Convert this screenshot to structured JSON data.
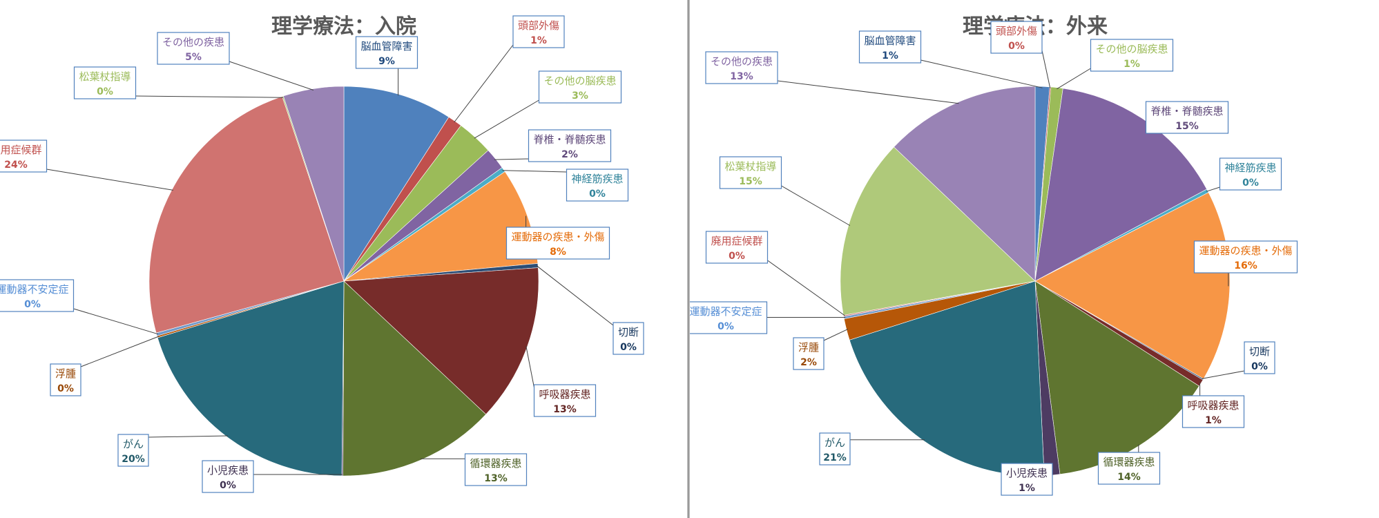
{
  "chart_data": [
    {
      "type": "pie",
      "title": "理学療法：入院",
      "slices": [
        {
          "label": "脳血管障害",
          "value": 9,
          "pct_text": "9%",
          "color": "#4f81bd",
          "text_color": "#1f497d"
        },
        {
          "label": "頭部外傷",
          "value": 1.2,
          "pct_text": "1%",
          "color": "#c0504d",
          "text_color": "#c0504d"
        },
        {
          "label": "その他の脳疾患",
          "value": 3,
          "pct_text": "3%",
          "color": "#9bbb59",
          "text_color": "#9bbb59"
        },
        {
          "label": "脊椎・脊髄疾患",
          "value": 1.8,
          "pct_text": "2%",
          "color": "#8064a2",
          "text_color": "#5f497a"
        },
        {
          "label": "神経筋疾患",
          "value": 0.4,
          "pct_text": "0%",
          "color": "#4bacc6",
          "text_color": "#31849b"
        },
        {
          "label": "運動器の疾患・外傷",
          "value": 8,
          "pct_text": "8%",
          "color": "#f79646",
          "text_color": "#e46c0a"
        },
        {
          "label": "切断",
          "value": 0.35,
          "pct_text": "0%",
          "color": "#2c4d75",
          "text_color": "#17375e"
        },
        {
          "label": "呼吸器疾患",
          "value": 13,
          "pct_text": "13%",
          "color": "#772c2a",
          "text_color": "#632523"
        },
        {
          "label": "循環器疾患",
          "value": 13,
          "pct_text": "13%",
          "color": "#5f7530",
          "text_color": "#4f6228"
        },
        {
          "label": "小児疾患",
          "value": 0.1,
          "pct_text": "0%",
          "color": "#4d3b62",
          "text_color": "#3f3151"
        },
        {
          "label": "がん",
          "value": 20,
          "pct_text": "20%",
          "color": "#276a7c",
          "text_color": "#215968"
        },
        {
          "label": "浮腫",
          "value": 0.15,
          "pct_text": "0%",
          "color": "#b65708",
          "text_color": "#984807"
        },
        {
          "label": "運動器不安定症",
          "value": 0.25,
          "pct_text": "0%",
          "color": "#729aca",
          "text_color": "#558ed5"
        },
        {
          "label": "廃用症候群",
          "value": 24,
          "pct_text": "24%",
          "color": "#d07370",
          "text_color": "#c0504d"
        },
        {
          "label": "松葉杖指導",
          "value": 0.1,
          "pct_text": "0%",
          "color": "#afc97a",
          "text_color": "#9bbb59"
        },
        {
          "label": "その他の疾患",
          "value": 5,
          "pct_text": "5%",
          "color": "#9983b5",
          "text_color": "#8064a2"
        }
      ]
    },
    {
      "type": "pie",
      "title": "理学療法：外来",
      "slices": [
        {
          "label": "脳血管障害",
          "value": 1.2,
          "pct_text": "1%",
          "color": "#4f81bd",
          "text_color": "#1f497d"
        },
        {
          "label": "頭部外傷",
          "value": 0.1,
          "pct_text": "0%",
          "color": "#c0504d",
          "text_color": "#c0504d"
        },
        {
          "label": "その他の脳疾患",
          "value": 1,
          "pct_text": "1%",
          "color": "#9bbb59",
          "text_color": "#9bbb59"
        },
        {
          "label": "脊椎・脊髄疾患",
          "value": 15,
          "pct_text": "15%",
          "color": "#8064a2",
          "text_color": "#5f497a"
        },
        {
          "label": "神経筋疾患",
          "value": 0.3,
          "pct_text": "0%",
          "color": "#4bacc6",
          "text_color": "#31849b"
        },
        {
          "label": "運動器の疾患・外傷",
          "value": 16,
          "pct_text": "16%",
          "color": "#f79646",
          "text_color": "#e46c0a"
        },
        {
          "label": "切断",
          "value": 0.1,
          "pct_text": "0%",
          "color": "#2c4d75",
          "text_color": "#17375e"
        },
        {
          "label": "呼吸器疾患",
          "value": 0.6,
          "pct_text": "1%",
          "color": "#772c2a",
          "text_color": "#632523"
        },
        {
          "label": "循環器疾患",
          "value": 14,
          "pct_text": "14%",
          "color": "#5f7530",
          "text_color": "#4f6228"
        },
        {
          "label": "小児疾患",
          "value": 1.3,
          "pct_text": "1%",
          "color": "#4d3b62",
          "text_color": "#3f3151"
        },
        {
          "label": "がん",
          "value": 21,
          "pct_text": "21%",
          "color": "#276a7c",
          "text_color": "#215968"
        },
        {
          "label": "浮腫",
          "value": 1.8,
          "pct_text": "2%",
          "color": "#b65708",
          "text_color": "#984807"
        },
        {
          "label": "運動器不安定症",
          "value": 0.2,
          "pct_text": "0%",
          "color": "#729aca",
          "text_color": "#558ed5"
        },
        {
          "label": "廃用症候群",
          "value": 0.1,
          "pct_text": "0%",
          "color": "#d07370",
          "text_color": "#c0504d"
        },
        {
          "label": "松葉杖指導",
          "value": 15,
          "pct_text": "15%",
          "color": "#afc97a",
          "text_color": "#9bbb59"
        },
        {
          "label": "その他の疾患",
          "value": 13,
          "pct_text": "13%",
          "color": "#9983b5",
          "text_color": "#8064a2"
        }
      ]
    }
  ]
}
